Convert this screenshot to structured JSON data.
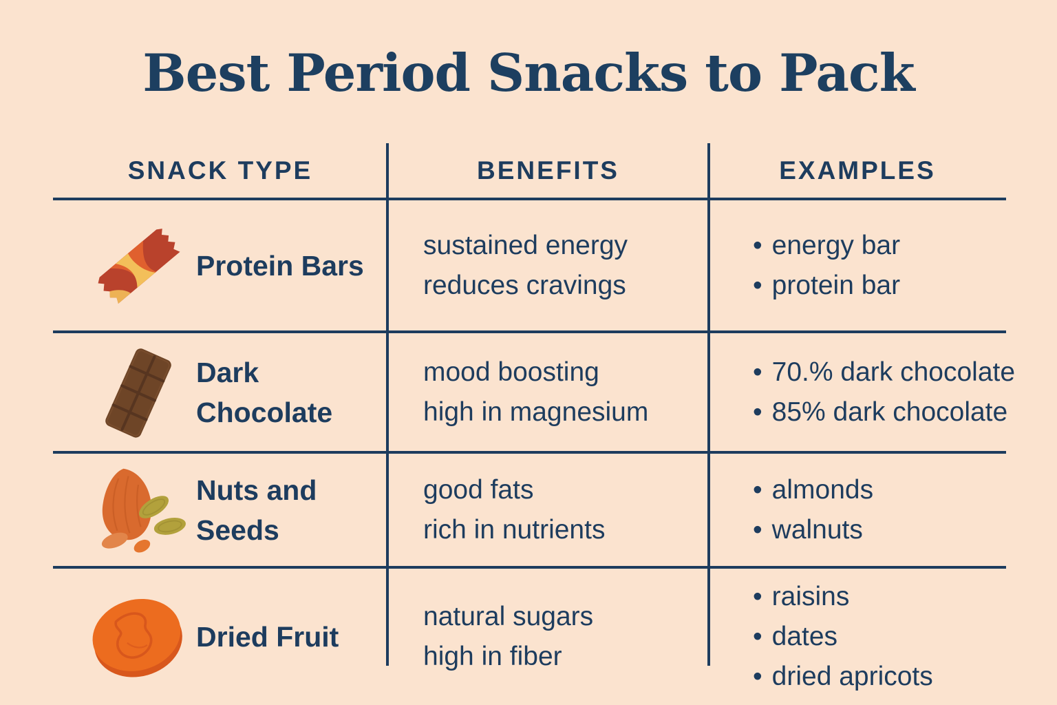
{
  "page": {
    "background_color": "#fbe3cf",
    "text_color": "#1d3c5e"
  },
  "title": "Best Period Snacks to Pack",
  "table": {
    "headers": [
      "SNACK TYPE",
      "BENEFITS",
      "EXAMPLES"
    ],
    "bullet": "•",
    "rows": [
      {
        "icon": "protein-bar-icon",
        "type": "Protein Bars",
        "benefits": [
          "sustained energy",
          "reduces cravings"
        ],
        "examples": [
          "energy bar",
          "protein bar"
        ]
      },
      {
        "icon": "chocolate-bar-icon",
        "type": "Dark Chocolate",
        "benefits": [
          "mood boosting",
          "high in magnesium"
        ],
        "examples": [
          "70.% dark chocolate",
          "85% dark chocolate"
        ]
      },
      {
        "icon": "nuts-and-seeds-icon",
        "type": "Nuts and Seeds",
        "benefits": [
          "good fats",
          "rich in nutrients"
        ],
        "examples": [
          "almonds",
          "walnuts"
        ]
      },
      {
        "icon": "dried-apricot-icon",
        "type": "Dried Fruit",
        "benefits": [
          "natural sugars",
          "high in fiber"
        ],
        "examples": [
          "raisins",
          "dates",
          "dried apricots"
        ]
      }
    ]
  },
  "chart_data": {
    "type": "table",
    "title": "Best Period Snacks to Pack",
    "columns": [
      "SNACK TYPE",
      "BENEFITS",
      "EXAMPLES"
    ],
    "rows": [
      {
        "snack_type": "Protein Bars",
        "benefits": [
          "sustained energy",
          "reduces cravings"
        ],
        "examples": [
          "energy bar",
          "protein bar"
        ]
      },
      {
        "snack_type": "Dark Chocolate",
        "benefits": [
          "mood boosting",
          "high in magnesium"
        ],
        "examples": [
          "70.% dark chocolate",
          "85% dark chocolate"
        ]
      },
      {
        "snack_type": "Nuts and Seeds",
        "benefits": [
          "good fats",
          "rich in nutrients"
        ],
        "examples": [
          "almonds",
          "walnuts"
        ]
      },
      {
        "snack_type": "Dried Fruit",
        "benefits": [
          "natural sugars",
          "high in fiber"
        ],
        "examples": [
          "raisins",
          "dates",
          "dried apricots"
        ]
      }
    ],
    "legend_position": "none",
    "grid": "table-rules"
  }
}
